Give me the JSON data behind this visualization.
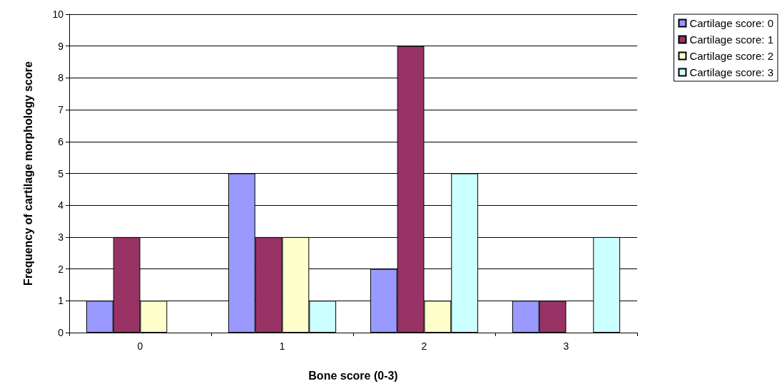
{
  "chart_data": {
    "type": "bar",
    "xlabel": "Bone score (0-3)",
    "ylabel": "Frequency of cartilage morphology score",
    "categories": [
      "0",
      "1",
      "2",
      "3"
    ],
    "series": [
      {
        "name": "Cartilage score: 0",
        "color": "#9999ff",
        "values": [
          1,
          5,
          2,
          1
        ]
      },
      {
        "name": "Cartilage score: 1",
        "color": "#993366",
        "values": [
          3,
          3,
          9,
          1
        ]
      },
      {
        "name": "Cartilage score: 2",
        "color": "#ffffcc",
        "values": [
          1,
          3,
          1,
          0
        ]
      },
      {
        "name": "Cartilage score: 3",
        "color": "#ccffff",
        "values": [
          0,
          1,
          5,
          3
        ]
      }
    ],
    "ylim": [
      0,
      10
    ],
    "yticks": [
      0,
      1,
      2,
      3,
      4,
      5,
      6,
      7,
      8,
      9,
      10
    ],
    "grid": "y",
    "legend": "top right"
  }
}
